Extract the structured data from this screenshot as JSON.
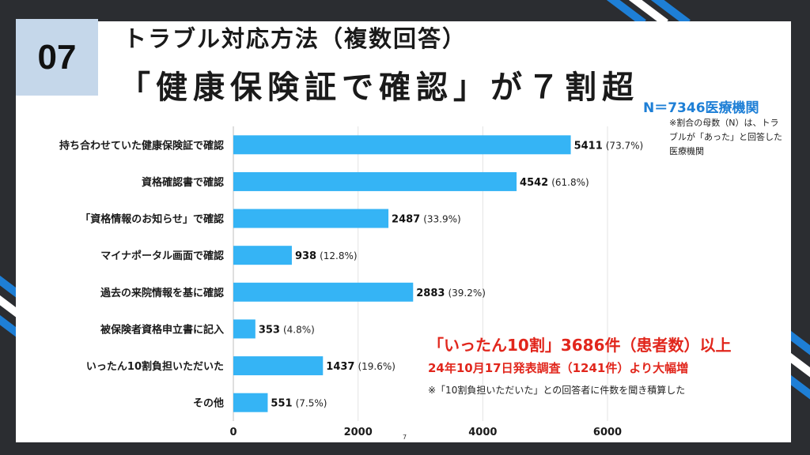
{
  "badge": "07",
  "title_line1": "トラブル対応方法（複数回答）",
  "title_line2": "「健康保険証で確認」が７割超",
  "sample_size": "N＝7346医療機関",
  "sample_note": "※割合の母数（N）は、トラブルが「あった」と回答した医療機関",
  "callout": {
    "line1": "「いったん10割」3686件（患者数）以上",
    "line2": "24年10月17日発表調査（1241件）より大幅増",
    "line3": "※「10割負担いただいた」との回答者に件数を聞き積算した"
  },
  "page_number": "7",
  "colors": {
    "bar": "#35b4f5",
    "accent_blue": "#1e7fd6",
    "accent_red": "#e1261c",
    "frame": "#2b2d31"
  },
  "chart_data": {
    "type": "bar",
    "orientation": "horizontal",
    "categories": [
      "持ち合わせていた健康保険証で確認",
      "資格確認書で確認",
      "「資格情報のお知らせ」で確認",
      "マイナポータル画面で確認",
      "過去の来院情報を基に確認",
      "被保険者資格申立書に記入",
      "いったん10割負担いただいた",
      "その他"
    ],
    "values": [
      5411,
      4542,
      2487,
      938,
      2883,
      353,
      1437,
      551
    ],
    "value_labels": [
      "5411",
      "4542",
      "2487",
      "938",
      "2883",
      "353",
      "1437",
      "551"
    ],
    "percent_labels": [
      "(73.7%)",
      "(61.8%)",
      "(33.9%)",
      "(12.8%)",
      "(39.2%)",
      "(4.8%)",
      "(19.6%)",
      "(7.5%)"
    ],
    "xlim": [
      0,
      6000
    ],
    "xticks": [
      "0",
      "2000",
      "4000",
      "6000"
    ],
    "grid": true
  }
}
